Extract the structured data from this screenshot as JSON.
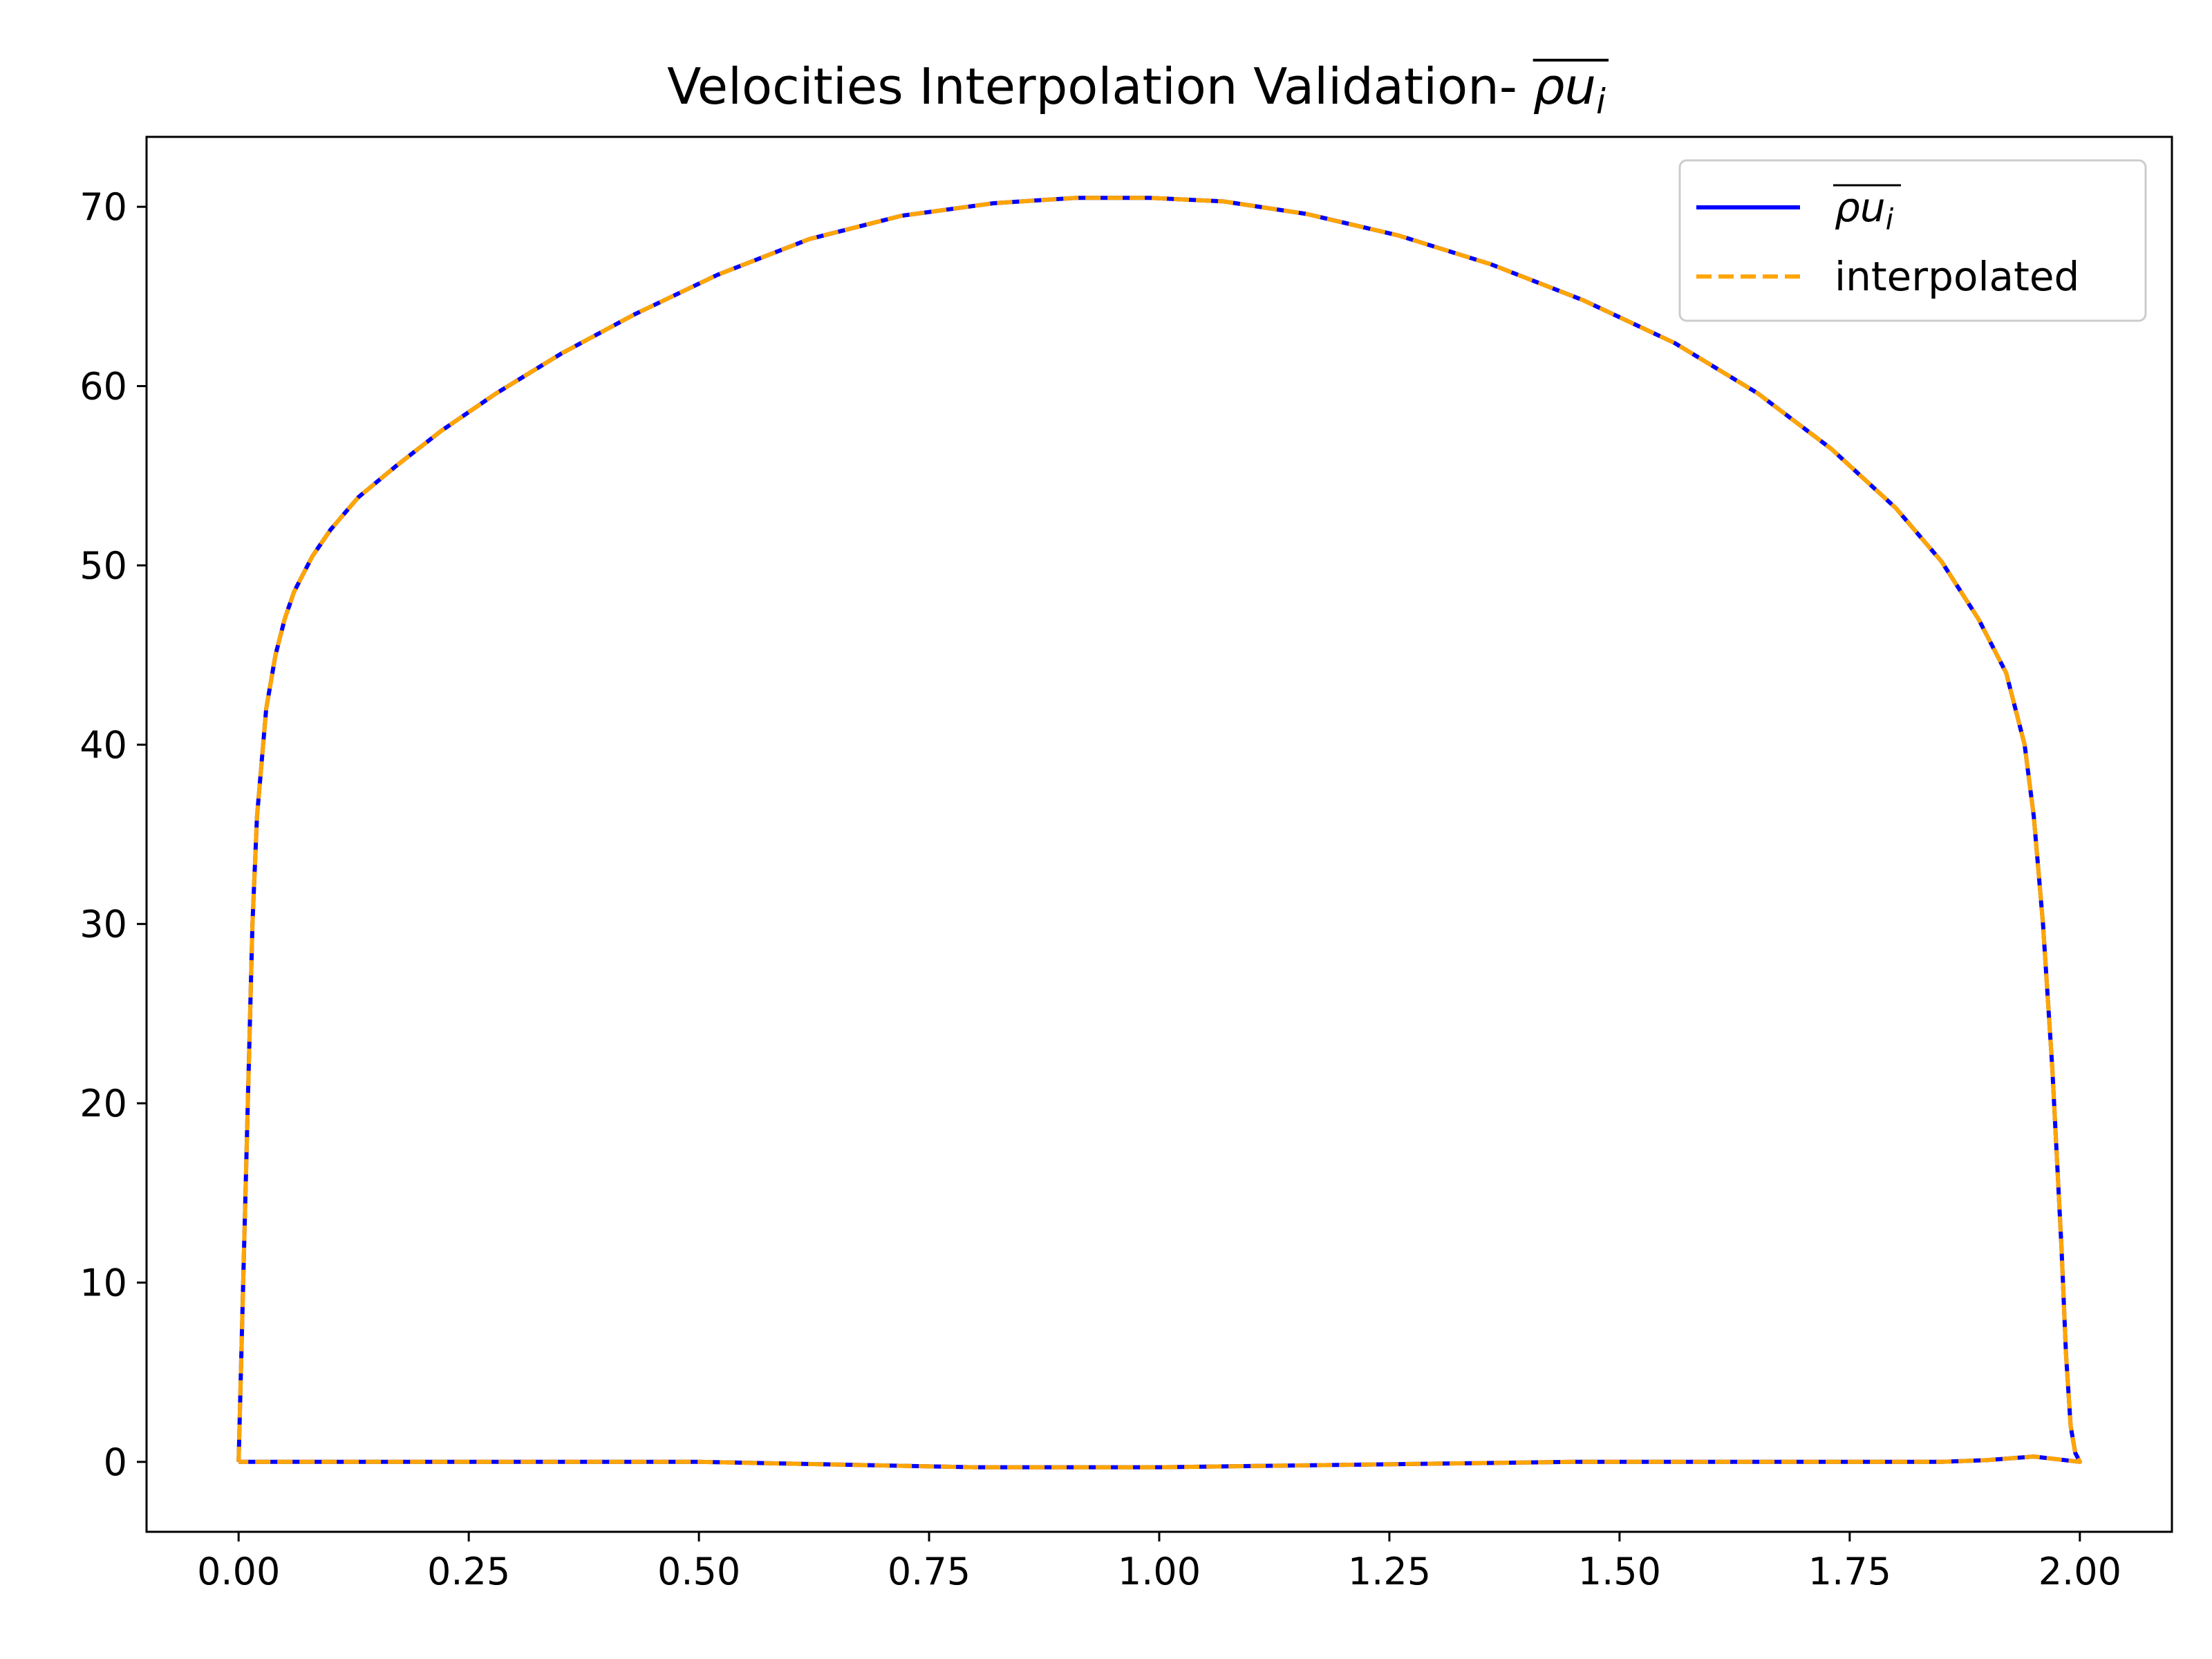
{
  "chart_data": {
    "type": "line",
    "title": "Velocities Interpolation Validation- ",
    "title_math": {
      "base": "ρu",
      "subscript": "i",
      "overline": true
    },
    "xlabel": "",
    "ylabel": "",
    "xlim": [
      -0.1,
      2.1
    ],
    "ylim": [
      -3.9,
      73.9
    ],
    "xticks": [
      0.0,
      0.25,
      0.5,
      0.75,
      1.0,
      1.25,
      1.5,
      1.75,
      2.0
    ],
    "xtick_labels": [
      "0.00",
      "0.25",
      "0.50",
      "0.75",
      "1.00",
      "1.25",
      "1.50",
      "1.75",
      "2.00"
    ],
    "yticks": [
      0,
      10,
      20,
      30,
      40,
      50,
      60,
      70
    ],
    "ytick_labels": [
      "0",
      "10",
      "20",
      "30",
      "40",
      "50",
      "60",
      "70"
    ],
    "grid": false,
    "legend_position": "top-right",
    "series": [
      {
        "name": "ρu_i (overline)",
        "legend_math": {
          "base": "ρu",
          "subscript": "i",
          "overline": true
        },
        "style": "solid",
        "color": "#0000ff",
        "x": [
          0.0,
          0.005,
          0.01,
          0.015,
          0.02,
          0.03,
          0.04,
          0.05,
          0.06,
          0.08,
          0.1,
          0.13,
          0.17,
          0.22,
          0.28,
          0.35,
          0.43,
          0.52,
          0.62,
          0.72,
          0.82,
          0.91,
          0.99,
          1.07,
          1.16,
          1.26,
          1.36,
          1.46,
          1.56,
          1.65,
          1.73,
          1.8,
          1.85,
          1.89,
          1.92,
          1.94,
          1.95,
          1.96,
          1.97,
          1.98,
          1.985,
          1.99,
          1.995,
          2.0,
          1.95,
          1.9,
          1.85,
          1.75,
          1.6,
          1.45,
          1.3,
          1.15,
          1.0,
          0.9,
          0.8,
          0.7,
          0.6,
          0.5,
          0.35,
          0.2,
          0.1,
          0.0
        ],
        "y": [
          0.0,
          10.0,
          20.0,
          30.0,
          36.0,
          42.0,
          45.0,
          47.0,
          48.5,
          50.5,
          52.0,
          53.8,
          55.5,
          57.5,
          59.6,
          61.8,
          64.0,
          66.2,
          68.2,
          69.5,
          70.2,
          70.5,
          70.5,
          70.3,
          69.6,
          68.4,
          66.8,
          64.8,
          62.4,
          59.6,
          56.5,
          53.2,
          50.2,
          47.0,
          44.0,
          40.0,
          36.0,
          30.0,
          22.0,
          12.0,
          6.0,
          2.0,
          0.5,
          0.0,
          0.3,
          0.1,
          0.0,
          0.0,
          0.0,
          0.0,
          -0.1,
          -0.2,
          -0.3,
          -0.3,
          -0.3,
          -0.2,
          -0.1,
          0.0,
          0.0,
          0.0,
          0.0,
          0.0
        ]
      },
      {
        "name": "interpolated",
        "style": "dashed",
        "color": "#ffa500",
        "x": [
          0.0,
          0.005,
          0.01,
          0.015,
          0.02,
          0.03,
          0.04,
          0.05,
          0.06,
          0.08,
          0.1,
          0.13,
          0.17,
          0.22,
          0.28,
          0.35,
          0.43,
          0.52,
          0.62,
          0.72,
          0.82,
          0.91,
          0.99,
          1.07,
          1.16,
          1.26,
          1.36,
          1.46,
          1.56,
          1.65,
          1.73,
          1.8,
          1.85,
          1.89,
          1.92,
          1.94,
          1.95,
          1.96,
          1.97,
          1.98,
          1.985,
          1.99,
          1.995,
          2.0,
          1.95,
          1.9,
          1.85,
          1.75,
          1.6,
          1.45,
          1.3,
          1.15,
          1.0,
          0.9,
          0.8,
          0.7,
          0.6,
          0.5,
          0.35,
          0.2,
          0.1,
          0.0
        ],
        "y": [
          0.0,
          10.0,
          20.0,
          30.0,
          36.0,
          42.0,
          45.0,
          47.0,
          48.5,
          50.5,
          52.0,
          53.8,
          55.5,
          57.5,
          59.6,
          61.8,
          64.0,
          66.2,
          68.2,
          69.5,
          70.2,
          70.5,
          70.5,
          70.3,
          69.6,
          68.4,
          66.8,
          64.8,
          62.4,
          59.6,
          56.5,
          53.2,
          50.2,
          47.0,
          44.0,
          40.0,
          36.0,
          30.0,
          22.0,
          12.0,
          6.0,
          2.0,
          0.5,
          0.0,
          0.3,
          0.1,
          0.0,
          0.0,
          0.0,
          0.0,
          -0.1,
          -0.2,
          -0.3,
          -0.3,
          -0.3,
          -0.2,
          -0.1,
          0.0,
          0.0,
          0.0,
          0.0,
          0.0
        ]
      }
    ]
  }
}
